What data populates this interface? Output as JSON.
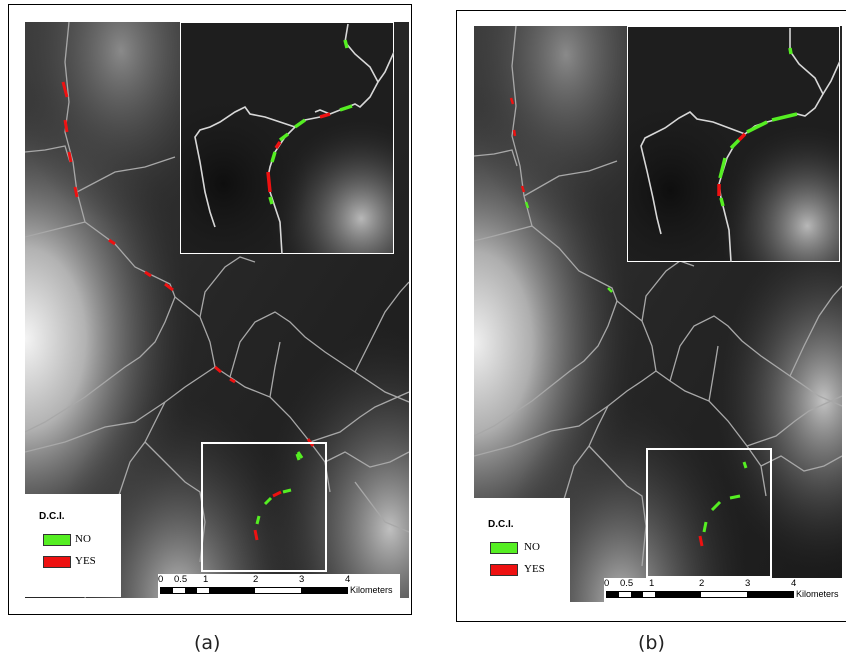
{
  "panels": [
    {
      "caption": "(a)",
      "legend": {
        "title": "D.C.I.",
        "items": [
          {
            "label": "NO",
            "color": "#55ee22"
          },
          {
            "label": "YES",
            "color": "#ee1111"
          }
        ]
      },
      "scale": {
        "ticks": [
          "0",
          "0.5",
          "1",
          "2",
          "3",
          "4"
        ],
        "unit": "Kilometers"
      }
    },
    {
      "caption": "(b)",
      "legend": {
        "title": "D.C.I.",
        "items": [
          {
            "label": "NO",
            "color": "#55ee22"
          },
          {
            "label": "YES",
            "color": "#ee1111"
          }
        ]
      },
      "scale": {
        "ticks": [
          "0",
          "0.5",
          "1",
          "2",
          "3",
          "4"
        ],
        "unit": "Kilometers"
      }
    }
  ],
  "colors": {
    "river": "#a8a8a8",
    "inset_river": "#d8d8d8",
    "no": "#55ee22",
    "yes": "#ee1111"
  }
}
